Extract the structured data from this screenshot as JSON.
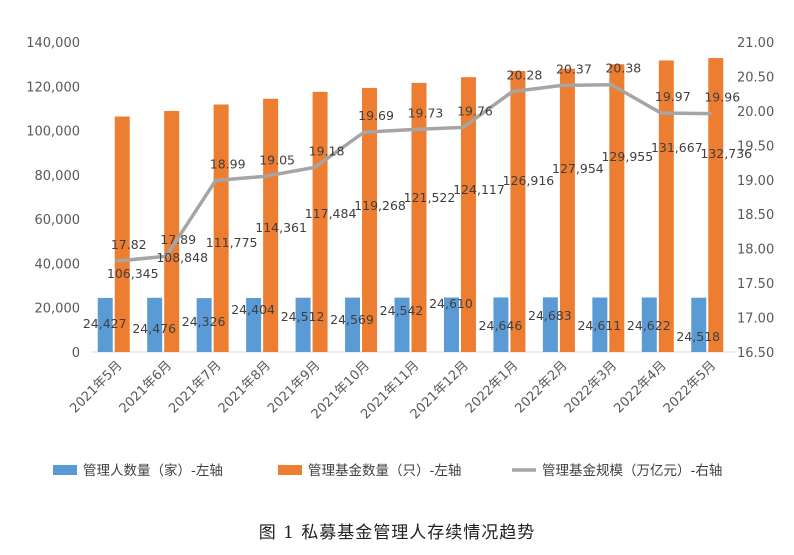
{
  "caption": "图 1 私募基金管理人存续情况趋势",
  "chart_data": {
    "type": "bar",
    "categories": [
      "2021年5月",
      "2021年6月",
      "2021年7月",
      "2021年8月",
      "2021年9月",
      "2021年10月",
      "2021年11月",
      "2021年12月",
      "2022年1月",
      "2022年2月",
      "2022年3月",
      "2022年4月",
      "2022年5月"
    ],
    "series": [
      {
        "name": "管理人数量（家）-左轴",
        "type": "bar",
        "axis": "left",
        "color": "#5B9BD5",
        "values": [
          24427,
          24476,
          24326,
          24404,
          24512,
          24569,
          24542,
          24610,
          24646,
          24683,
          24611,
          24622,
          24518
        ],
        "labels": [
          "24,427",
          "24,476",
          "24,326",
          "24,404",
          "24,512",
          "24,569",
          "24,542",
          "24,610",
          "24,646",
          "24,683",
          "24,611",
          "24,622",
          "24,518"
        ]
      },
      {
        "name": "管理基金数量（只）-左轴",
        "type": "bar",
        "axis": "left",
        "color": "#ED7D31",
        "values": [
          106345,
          108848,
          111775,
          114361,
          117484,
          119268,
          121522,
          124117,
          126916,
          127954,
          129955,
          131667,
          132736
        ],
        "labels": [
          "106,345",
          "108,848",
          "111,775",
          "114,361",
          "117,484",
          "119,268",
          "121,522",
          "124,117",
          "126,916",
          "127,954",
          "129,955",
          "131,667",
          "132,736"
        ]
      },
      {
        "name": "管理基金规模（万亿元）-右轴",
        "type": "line",
        "axis": "right",
        "color": "#A5A5A5",
        "values": [
          17.82,
          17.89,
          18.99,
          19.05,
          19.18,
          19.69,
          19.73,
          19.76,
          20.28,
          20.37,
          20.38,
          19.97,
          19.96
        ],
        "labels": [
          "17.82",
          "17.89",
          "18.99",
          "19.05",
          "19.18",
          "19.69",
          "19.73",
          "19.76",
          "20.28",
          "20.37",
          "20.38",
          "19.97",
          "19.96"
        ]
      }
    ],
    "y_left": {
      "ylim": [
        0,
        140000
      ],
      "ticks": [
        0,
        20000,
        40000,
        60000,
        80000,
        100000,
        120000,
        140000
      ],
      "tick_labels": [
        "0",
        "20,000",
        "40,000",
        "60,000",
        "80,000",
        "100,000",
        "120,000",
        "140,000"
      ]
    },
    "y_right": {
      "ylim": [
        16.5,
        21.0
      ],
      "ticks": [
        16.5,
        17.0,
        17.5,
        18.0,
        18.5,
        19.0,
        19.5,
        20.0,
        20.5,
        21.0
      ],
      "tick_labels": [
        "16.50",
        "17.00",
        "17.50",
        "18.00",
        "18.50",
        "19.00",
        "19.50",
        "20.00",
        "20.50",
        "21.00"
      ]
    },
    "grid": false,
    "legend_position": "bottom"
  }
}
